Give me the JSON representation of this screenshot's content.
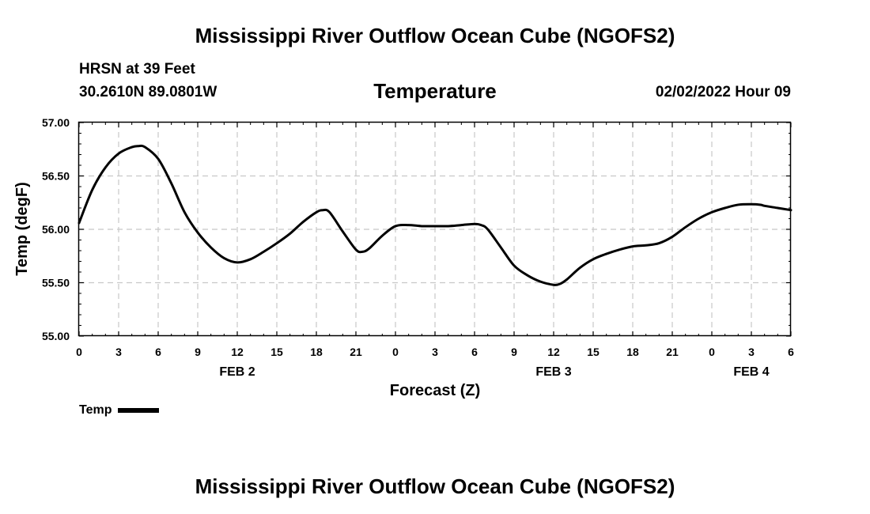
{
  "header": {
    "main_title": "Mississippi River Outflow Ocean Cube (NGOFS2)",
    "station": "HRSN at 39 Feet",
    "coords": "30.2610N  89.0801W",
    "chart_title": "Temperature",
    "datetime": "02/02/2022 Hour 09"
  },
  "footer": {
    "main_title": "Mississippi River Outflow Ocean Cube (NGOFS2)"
  },
  "legend": {
    "label": "Temp"
  },
  "colors": {
    "line": "#000000",
    "grid": "#c8c8c8",
    "axis": "#000000"
  },
  "chart_data": {
    "type": "line",
    "title": "Temperature",
    "xlabel": "Forecast (Z)",
    "ylabel": "Temp (degF)",
    "xlim": [
      0,
      54
    ],
    "ylim": [
      55.0,
      57.0
    ],
    "grid": true,
    "legend_position": "bottom-left",
    "y_ticks": [
      55.0,
      55.5,
      56.0,
      56.5,
      57.0
    ],
    "y_tick_labels": [
      "55.00",
      "55.50",
      "56.00",
      "56.50",
      "57.00"
    ],
    "x_ticks": [
      0,
      3,
      6,
      9,
      12,
      15,
      18,
      21,
      24,
      27,
      30,
      33,
      36,
      39,
      42,
      45,
      48,
      51,
      54
    ],
    "x_tick_labels": [
      "0",
      "3",
      "6",
      "9",
      "12",
      "15",
      "18",
      "21",
      "0",
      "3",
      "6",
      "9",
      "12",
      "15",
      "18",
      "21",
      "0",
      "3",
      "6"
    ],
    "date_labels": [
      {
        "x": 12,
        "label": "FEB 2"
      },
      {
        "x": 36,
        "label": "FEB 3"
      },
      {
        "x": 51,
        "label": "FEB 4"
      }
    ],
    "series": [
      {
        "name": "Temp",
        "x": [
          0,
          1,
          2,
          3,
          4,
          4.5,
          5,
          6,
          7,
          8,
          9,
          10,
          11,
          12,
          13,
          14,
          15,
          16,
          17,
          18,
          18.5,
          19,
          20,
          21,
          21.5,
          22,
          23,
          24,
          25,
          26,
          27,
          28,
          29,
          30,
          30.5,
          31,
          32,
          33,
          34,
          35,
          36,
          36.5,
          37,
          38,
          39,
          40,
          41,
          42,
          43,
          44,
          45,
          46,
          47,
          48,
          49,
          50,
          51,
          51.7,
          52,
          53,
          54
        ],
        "values": [
          56.06,
          56.37,
          56.58,
          56.71,
          56.77,
          56.78,
          56.77,
          56.66,
          56.43,
          56.16,
          55.97,
          55.83,
          55.73,
          55.69,
          55.72,
          55.79,
          55.87,
          55.96,
          56.07,
          56.16,
          56.18,
          56.16,
          55.98,
          55.81,
          55.79,
          55.82,
          55.94,
          56.03,
          56.04,
          56.03,
          56.03,
          56.03,
          56.04,
          56.05,
          56.04,
          56.0,
          55.83,
          55.66,
          55.57,
          55.51,
          55.48,
          55.49,
          55.53,
          55.64,
          55.72,
          55.77,
          55.81,
          55.84,
          55.85,
          55.87,
          55.93,
          56.02,
          56.1,
          56.16,
          56.2,
          56.23,
          56.235,
          56.23,
          56.22,
          56.2,
          56.18
        ]
      }
    ]
  }
}
